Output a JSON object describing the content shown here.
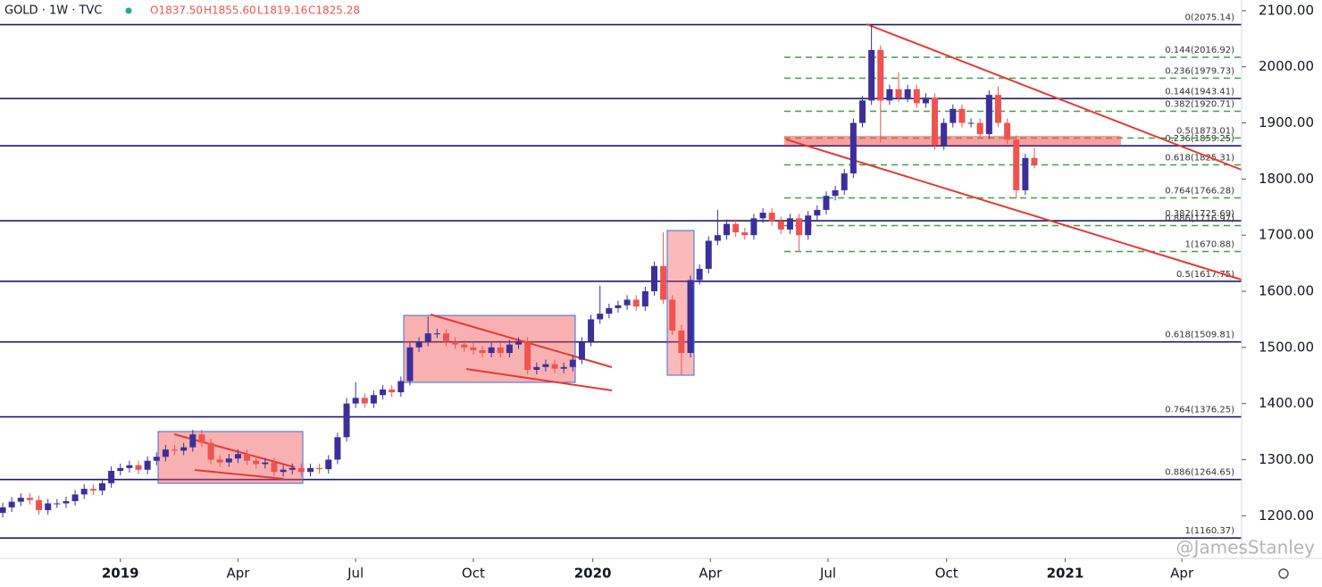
{
  "chart_data": {
    "type": "candlestick",
    "header": {
      "symbol": "GOLD · 1W · TVC",
      "open": "O1837.50",
      "high": "H1855.60",
      "low": "L1819.16",
      "close": "C1825.28"
    },
    "watermark": "@JamesStanley",
    "up_color": "#3b2f9a",
    "down_color": "#ef5350",
    "x": [
      -13,
      -12,
      -11,
      -10,
      -9,
      -8,
      -7,
      -6,
      -5,
      -4,
      -3,
      -2,
      -1,
      0,
      1,
      2,
      3,
      4,
      5,
      6,
      7,
      8,
      9,
      10,
      11,
      12,
      13,
      14,
      15,
      16,
      17,
      18,
      19,
      20,
      21,
      22,
      23,
      24,
      25,
      26,
      27,
      28,
      29,
      30,
      31,
      32,
      33,
      34,
      35,
      36,
      37,
      38,
      39,
      40,
      41,
      42,
      43,
      44,
      45,
      46,
      47,
      48,
      49,
      50,
      51,
      52,
      53,
      54,
      55,
      56,
      57,
      58,
      59,
      60,
      61,
      62,
      63,
      64,
      65,
      66,
      67,
      68,
      69,
      70,
      71,
      72,
      73,
      74,
      75,
      76,
      77,
      78,
      79,
      80,
      81,
      82,
      83,
      84,
      85,
      86,
      87,
      88,
      89,
      90,
      91,
      92,
      93,
      94,
      95,
      96,
      97,
      98,
      99,
      100,
      101
    ],
    "open": [
      1205,
      1215,
      1225,
      1232,
      1228,
      1210,
      1222,
      1222,
      1226,
      1238,
      1248,
      1245,
      1258,
      1280,
      1285,
      1290,
      1282,
      1298,
      1305,
      1318,
      1316,
      1322,
      1345,
      1330,
      1300,
      1295,
      1302,
      1310,
      1298,
      1292,
      1295,
      1278,
      1282,
      1285,
      1278,
      1285,
      1283,
      1300,
      1340,
      1400,
      1410,
      1400,
      1415,
      1425,
      1420,
      1440,
      1500,
      1510,
      1525,
      1525,
      1510,
      1505,
      1500,
      1495,
      1490,
      1500,
      1490,
      1505,
      1510,
      1460,
      1465,
      1470,
      1462,
      1465,
      1478,
      1510,
      1550,
      1560,
      1570,
      1575,
      1585,
      1573,
      1600,
      1645,
      1585,
      1530,
      1490,
      1620,
      1640,
      1690,
      1700,
      1720,
      1705,
      1700,
      1730,
      1740,
      1725,
      1710,
      1730,
      1700,
      1735,
      1745,
      1770,
      1780,
      1810,
      1900,
      1940,
      2030,
      1940,
      1960,
      1945,
      1960,
      1935,
      1945,
      1860,
      1900,
      1925,
      1900,
      1900,
      1880,
      1950,
      1900,
      1870,
      1780,
      1837.5
    ],
    "high": [
      1223,
      1233,
      1240,
      1240,
      1236,
      1230,
      1230,
      1234,
      1246,
      1256,
      1256,
      1266,
      1288,
      1293,
      1298,
      1298,
      1306,
      1313,
      1326,
      1326,
      1330,
      1353,
      1353,
      1338,
      1308,
      1310,
      1318,
      1318,
      1306,
      1303,
      1303,
      1290,
      1293,
      1293,
      1293,
      1293,
      1308,
      1348,
      1410,
      1438,
      1418,
      1423,
      1433,
      1433,
      1448,
      1508,
      1518,
      1555,
      1533,
      1533,
      1518,
      1513,
      1508,
      1503,
      1508,
      1508,
      1513,
      1518,
      1518,
      1473,
      1478,
      1478,
      1473,
      1486,
      1518,
      1558,
      1610,
      1578,
      1583,
      1593,
      1593,
      1608,
      1653,
      1705,
      1593,
      1540,
      1628,
      1648,
      1698,
      1745,
      1728,
      1728,
      1713,
      1738,
      1748,
      1748,
      1733,
      1738,
      1738,
      1743,
      1753,
      1778,
      1788,
      1818,
      1908,
      1948,
      2075,
      2038,
      1968,
      1990,
      1968,
      1968,
      1953,
      1953,
      1908,
      1933,
      1933,
      1908,
      1908,
      1958,
      1965,
      1908,
      1878,
      1845,
      1855.6
    ],
    "low": [
      1197,
      1207,
      1217,
      1220,
      1202,
      1202,
      1214,
      1214,
      1218,
      1230,
      1237,
      1237,
      1250,
      1272,
      1277,
      1274,
      1274,
      1290,
      1297,
      1308,
      1308,
      1314,
      1322,
      1292,
      1287,
      1287,
      1294,
      1290,
      1284,
      1284,
      1270,
      1270,
      1274,
      1270,
      1270,
      1275,
      1275,
      1292,
      1332,
      1392,
      1392,
      1392,
      1407,
      1412,
      1412,
      1432,
      1492,
      1502,
      1517,
      1502,
      1497,
      1492,
      1487,
      1482,
      1482,
      1482,
      1482,
      1497,
      1452,
      1452,
      1457,
      1454,
      1454,
      1457,
      1470,
      1502,
      1542,
      1552,
      1562,
      1567,
      1565,
      1565,
      1592,
      1577,
      1522,
      1450,
      1482,
      1612,
      1632,
      1682,
      1692,
      1697,
      1692,
      1692,
      1722,
      1717,
      1702,
      1702,
      1670,
      1692,
      1727,
      1737,
      1762,
      1772,
      1802,
      1892,
      1932,
      1865,
      1932,
      1937,
      1937,
      1927,
      1927,
      1852,
      1852,
      1892,
      1892,
      1892,
      1872,
      1872,
      1892,
      1862,
      1765,
      1772,
      1819.16
    ],
    "close": [
      1215,
      1225,
      1232,
      1228,
      1210,
      1222,
      1222,
      1226,
      1238,
      1248,
      1245,
      1258,
      1280,
      1285,
      1290,
      1282,
      1298,
      1305,
      1318,
      1316,
      1322,
      1345,
      1330,
      1300,
      1295,
      1302,
      1310,
      1298,
      1292,
      1295,
      1278,
      1282,
      1285,
      1278,
      1285,
      1283,
      1300,
      1340,
      1400,
      1410,
      1400,
      1415,
      1425,
      1420,
      1440,
      1500,
      1510,
      1525,
      1525,
      1510,
      1505,
      1500,
      1495,
      1490,
      1500,
      1490,
      1505,
      1510,
      1460,
      1465,
      1470,
      1462,
      1465,
      1478,
      1510,
      1550,
      1560,
      1570,
      1575,
      1585,
      1573,
      1600,
      1645,
      1585,
      1530,
      1490,
      1620,
      1640,
      1690,
      1700,
      1720,
      1705,
      1700,
      1730,
      1740,
      1725,
      1710,
      1730,
      1700,
      1735,
      1745,
      1770,
      1780,
      1810,
      1900,
      1940,
      2030,
      1940,
      1960,
      1945,
      1960,
      1935,
      1945,
      1860,
      1900,
      1925,
      1900,
      1900,
      1880,
      1950,
      1900,
      1870,
      1780,
      1837.5,
      1825.28
    ],
    "xlim": [
      -13.3,
      123.9
    ],
    "ylim": [
      1124,
      2119
    ],
    "xticks": [
      {
        "value": 0,
        "label": "2019"
      },
      {
        "value": 13,
        "label": "Apr"
      },
      {
        "value": 26,
        "label": "Jul"
      },
      {
        "value": 39,
        "label": "Oct"
      },
      {
        "value": 52.2,
        "label": "2020"
      },
      {
        "value": 65.2,
        "label": "Apr"
      },
      {
        "value": 78.2,
        "label": "Jul"
      },
      {
        "value": 91.3,
        "label": "Oct"
      },
      {
        "value": 104.4,
        "label": "2021"
      },
      {
        "value": 117.3,
        "label": "Apr"
      }
    ],
    "yticks": [
      {
        "value": 1200,
        "label": "1200.00"
      },
      {
        "value": 1300,
        "label": "1300.00"
      },
      {
        "value": 1400,
        "label": "1400.00"
      },
      {
        "value": 1500,
        "label": "1500.00"
      },
      {
        "value": 1600,
        "label": "1600.00"
      },
      {
        "value": 1700,
        "label": "1700.00"
      },
      {
        "value": 1800,
        "label": "1800.00"
      },
      {
        "value": 1900,
        "label": "1900.00"
      },
      {
        "value": 2000,
        "label": "2000.00"
      },
      {
        "value": 2100,
        "label": "2100.00"
      }
    ],
    "long_levels_color": "#1f1b6e",
    "short_levels_color": "#43a047",
    "long_levels": [
      {
        "value": 2075.14,
        "label": "0(2075.14)"
      },
      {
        "value": 1943.41,
        "label": "0.144(1943.41)"
      },
      {
        "value": 1859.25,
        "label": "0.236(1859.25)"
      },
      {
        "value": 1725.69,
        "label": "0.382(1725.69)"
      },
      {
        "value": 1617.75,
        "label": "0.5(1617.75)"
      },
      {
        "value": 1509.81,
        "label": "0.618(1509.81)"
      },
      {
        "value": 1376.25,
        "label": "0.764(1376.25)"
      },
      {
        "value": 1264.65,
        "label": "0.886(1264.65)"
      },
      {
        "value": 1160.37,
        "label": "1(1160.37)"
      }
    ],
    "short_levels": [
      {
        "value": 2016.92,
        "label": "0.144(2016.92)"
      },
      {
        "value": 1979.73,
        "label": "0.236(1979.73)"
      },
      {
        "value": 1920.71,
        "label": "0.382(1920.71)"
      },
      {
        "value": 1873.01,
        "label": "0.5(1873.01)"
      },
      {
        "value": 1825.31,
        "label": "0.618(1825.31)"
      },
      {
        "value": 1766.28,
        "label": "0.764(1766.28)"
      },
      {
        "value": 1716.97,
        "label": "0.886(1716.97)"
      },
      {
        "value": 1670.88,
        "label": "1(1670.88)"
      }
    ]
  }
}
